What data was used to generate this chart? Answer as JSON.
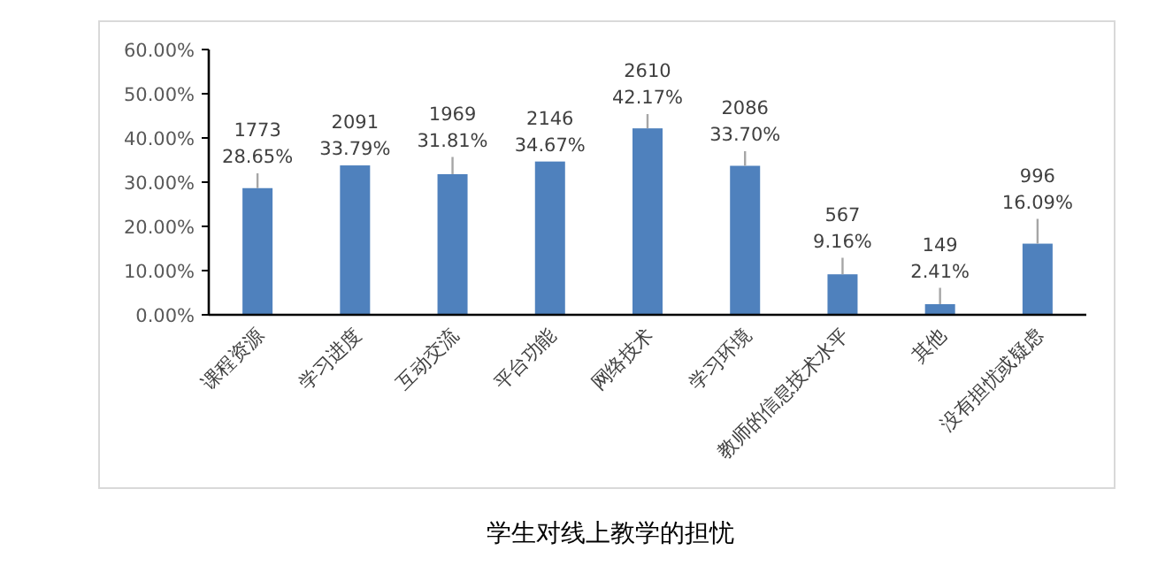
{
  "chart_data": {
    "type": "bar",
    "title": "学生对线上教学的担忧",
    "categories": [
      "课程资源",
      "学习进度",
      "互动交流",
      "平台功能",
      "网络技术",
      "学习环境",
      "教师的信息技术水平",
      "其他",
      "没有担忧或疑虑"
    ],
    "values": [
      28.65,
      33.79,
      31.81,
      34.67,
      42.17,
      33.7,
      9.16,
      2.41,
      16.09
    ],
    "color": "#4f81bd",
    "errors": [
      [
        28.65,
        32.0
      ],
      null,
      [
        31.81,
        35.7
      ],
      null,
      [
        42.17,
        45.4
      ],
      [
        33.7,
        37.0
      ],
      [
        9.16,
        12.9
      ],
      [
        2.41,
        6.1
      ],
      [
        16.09,
        21.7
      ]
    ],
    "value_labels": [
      "1773\n28.65%",
      "2091\n33.79%",
      "1969\n31.81%",
      "2146\n34.67%",
      "2610\n42.17%",
      "2086\n33.70%",
      "567\n9.16%",
      "149\n2.41%",
      "996\n16.09%"
    ],
    "ylim": [
      0,
      60
    ],
    "yticks": [
      {
        "value": 0,
        "label": "0.00%"
      },
      {
        "value": 10,
        "label": "10.00%"
      },
      {
        "value": 20,
        "label": "20.00%"
      },
      {
        "value": 30,
        "label": "30.00%"
      },
      {
        "value": 40,
        "label": "40.00%"
      },
      {
        "value": 50,
        "label": "50.00%"
      },
      {
        "value": 60,
        "label": "60.00%"
      }
    ]
  }
}
